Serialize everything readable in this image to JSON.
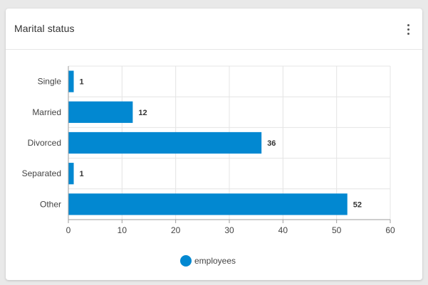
{
  "card": {
    "title": "Marital status"
  },
  "header_menu": {
    "icon": "more-vertical-icon"
  },
  "colors": {
    "bar": "#0288d1",
    "grid": "#e4e4e4",
    "axis": "#9e9e9e"
  },
  "chart_data": {
    "type": "bar",
    "orientation": "horizontal",
    "title": "",
    "xlabel": "",
    "ylabel": "",
    "categories": [
      "Single",
      "Married",
      "Divorced",
      "Separated",
      "Other"
    ],
    "series": [
      {
        "name": "employees",
        "values": [
          1,
          12,
          36,
          1,
          52
        ]
      }
    ],
    "xlim": [
      0,
      60
    ],
    "xticks": [
      0,
      10,
      20,
      30,
      40,
      50,
      60
    ],
    "grid": true,
    "data_labels": true,
    "legend": {
      "position": "bottom",
      "entries": [
        "employees"
      ]
    }
  }
}
